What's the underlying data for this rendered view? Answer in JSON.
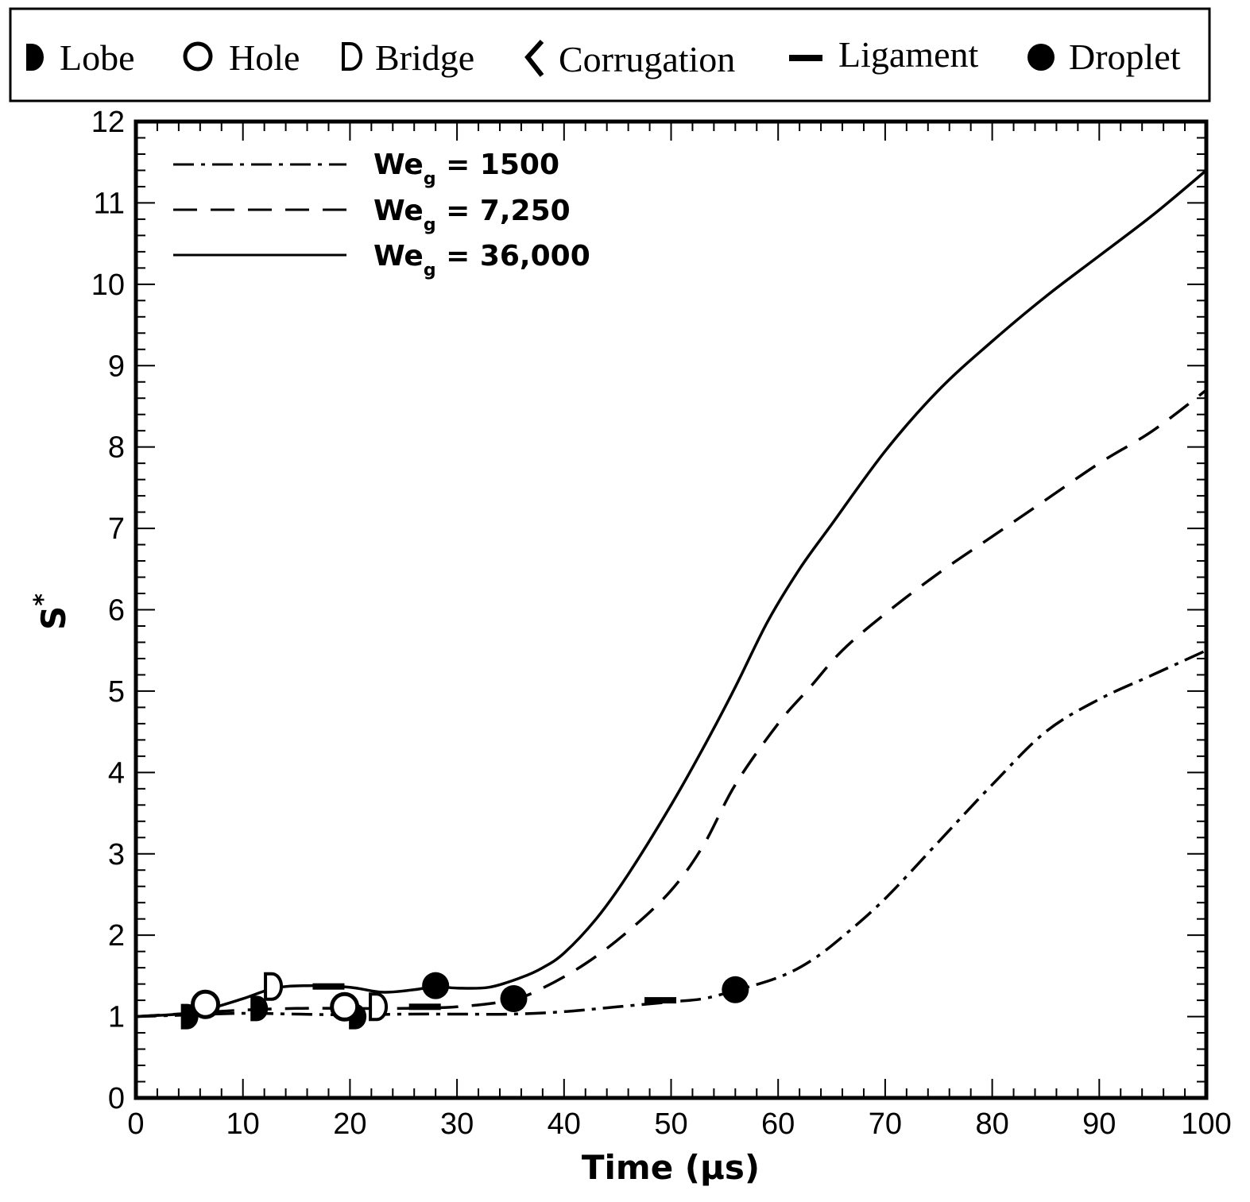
{
  "symbol_legend": [
    {
      "key": "lobe",
      "label": "Lobe"
    },
    {
      "key": "hole",
      "label": "Hole"
    },
    {
      "key": "bridge",
      "label": "Bridge"
    },
    {
      "key": "corrugation",
      "label": "Corrugation"
    },
    {
      "key": "ligament",
      "label": "Ligament"
    },
    {
      "key": "droplet",
      "label": "Droplet"
    }
  ],
  "chart_data": {
    "type": "line",
    "title": "",
    "xlabel": "Time (μs)",
    "ylabel": "S",
    "ylabel_sup": "*",
    "xlim": [
      0,
      100
    ],
    "ylim": [
      0,
      12
    ],
    "x_ticks": [
      0,
      10,
      20,
      30,
      40,
      50,
      60,
      70,
      80,
      90,
      100
    ],
    "y_ticks": [
      0,
      1,
      2,
      3,
      4,
      5,
      6,
      7,
      8,
      9,
      10,
      11,
      12
    ],
    "x_tick_labels": [
      "0",
      "10",
      "20",
      "30",
      "40",
      "50",
      "60",
      "70",
      "80",
      "90",
      "100"
    ],
    "y_tick_labels": [
      "0",
      "1",
      "2",
      "3",
      "4",
      "5",
      "6",
      "7",
      "8",
      "9",
      "10",
      "11",
      "12"
    ],
    "grid": false,
    "legend_position": "top-left",
    "series": [
      {
        "name": "We = 1500",
        "label_main": "We",
        "label_sub": "g",
        "label_rest": " = 1500",
        "style": "dashdot",
        "x": [
          0,
          5,
          10,
          15,
          20,
          25,
          30,
          35,
          40,
          45,
          50,
          53,
          56,
          60,
          63,
          66,
          70,
          75,
          80,
          85,
          90,
          95,
          100
        ],
        "y": [
          1.0,
          1.02,
          1.04,
          1.03,
          1.02,
          1.03,
          1.03,
          1.03,
          1.06,
          1.12,
          1.18,
          1.22,
          1.32,
          1.48,
          1.68,
          1.98,
          2.45,
          3.15,
          3.85,
          4.5,
          4.9,
          5.2,
          5.5
        ],
        "markers": [
          {
            "type": "lobe",
            "x": 4.8,
            "y": 1.0
          },
          {
            "type": "lobe",
            "x": 20.5,
            "y": 1.0
          },
          {
            "type": "ligament",
            "x": 49,
            "y": 1.2
          },
          {
            "type": "droplet",
            "x": 56,
            "y": 1.33
          }
        ]
      },
      {
        "name": "We = 7,250",
        "label_main": "We",
        "label_sub": "g",
        "label_rest": " = 7,250",
        "style": "dashed",
        "x": [
          0,
          5,
          10,
          15,
          20,
          25,
          30,
          35,
          38,
          42,
          46,
          50,
          53,
          56,
          60,
          63,
          66,
          70,
          75,
          80,
          85,
          90,
          95,
          100
        ],
        "y": [
          1.0,
          1.04,
          1.08,
          1.1,
          1.1,
          1.1,
          1.12,
          1.2,
          1.35,
          1.65,
          2.05,
          2.55,
          3.1,
          3.85,
          4.6,
          5.05,
          5.5,
          5.95,
          6.45,
          6.9,
          7.35,
          7.8,
          8.2,
          8.7
        ],
        "markers": [
          {
            "type": "lobe",
            "x": 11.3,
            "y": 1.1
          },
          {
            "type": "hole",
            "x": 19.5,
            "y": 1.12
          },
          {
            "type": "bridge",
            "x": 22.5,
            "y": 1.12
          },
          {
            "type": "ligament",
            "x": 27,
            "y": 1.12
          },
          {
            "type": "droplet",
            "x": 35.3,
            "y": 1.22
          }
        ]
      },
      {
        "name": "We = 36,000",
        "label_main": "We",
        "label_sub": "g",
        "label_rest": " = 36,000",
        "style": "solid",
        "x": [
          0,
          5,
          7,
          10,
          13,
          16,
          20,
          23,
          26,
          28,
          30,
          33,
          36,
          38,
          40,
          43,
          46,
          50,
          53,
          56,
          59,
          62,
          65,
          70,
          75,
          80,
          85,
          90,
          95,
          100
        ],
        "y": [
          1.0,
          1.04,
          1.1,
          1.22,
          1.35,
          1.38,
          1.36,
          1.3,
          1.33,
          1.37,
          1.35,
          1.36,
          1.48,
          1.6,
          1.78,
          2.2,
          2.75,
          3.6,
          4.3,
          5.05,
          5.85,
          6.5,
          7.05,
          7.95,
          8.7,
          9.3,
          9.85,
          10.35,
          10.85,
          11.4
        ],
        "markers": [
          {
            "type": "hole",
            "x": 6.5,
            "y": 1.15
          },
          {
            "type": "bridge",
            "x": 12.7,
            "y": 1.37
          },
          {
            "type": "ligament",
            "x": 18,
            "y": 1.37
          },
          {
            "type": "droplet",
            "x": 28,
            "y": 1.38
          }
        ]
      }
    ]
  }
}
